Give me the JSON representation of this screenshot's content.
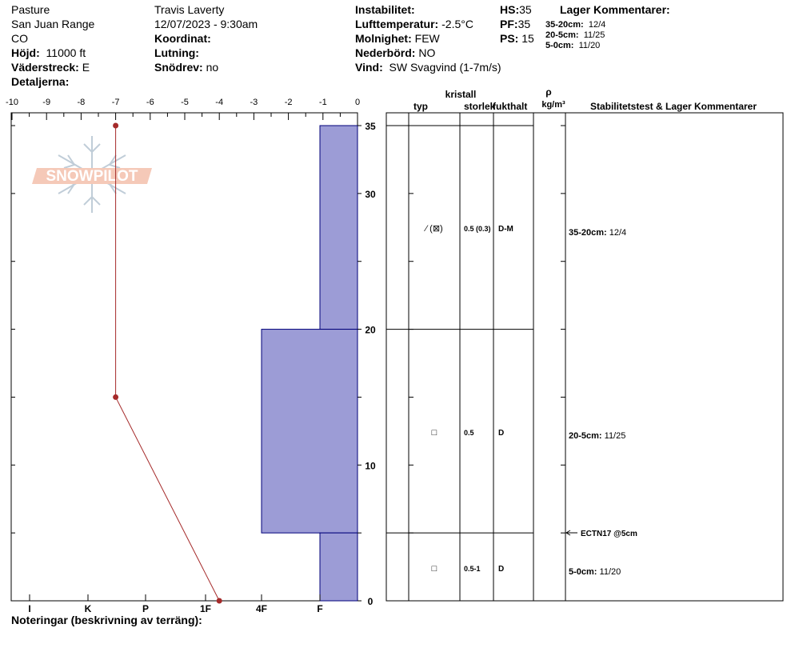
{
  "header": {
    "location": "Pasture",
    "range": "San Juan Range",
    "state": "CO",
    "elevation_label": "Höjd:",
    "elevation_value": "11000 ft",
    "aspect_label": "Väderstreck:",
    "aspect_value": "E",
    "details_label": "Detaljerna:",
    "observer": "Travis Laverty",
    "datetime": "12/07/2023 - 9:30am",
    "coordinate_label": "Koordinat:",
    "slope_label": "Lutning:",
    "drift_label": "Snödrev:",
    "drift_value": "no",
    "instability_label": "Instabilitet:",
    "airtemp_label": "Lufttemperatur:",
    "airtemp_value": "-2.5°C",
    "sky_label": "Molnighet:",
    "sky_value": "FEW",
    "precip_label": "Nederbörd:",
    "precip_value": "NO",
    "wind_label": "Vind:",
    "wind_value": "SW Svagvind (1-7m/s)",
    "hs_label": "HS:",
    "hs_value": "35",
    "pf_label": "PF:",
    "pf_value": "35",
    "ps_label": "PS:",
    "ps_value": "15",
    "layer_comments_title": "Lager Kommentarer:",
    "layer_comments": [
      {
        "range": "35-20cm:",
        "text": "12/4"
      },
      {
        "range": "20-5cm:",
        "text": "11/25"
      },
      {
        "range": "5-0cm:",
        "text": "11/20"
      }
    ]
  },
  "logo": {
    "text": "SNOWPILOT"
  },
  "notes_label": "Noteringar (beskrivning av terräng):",
  "colors": {
    "hardness_fill": "#9c9cd6",
    "temp_line": "#a52a2a",
    "logo": "#f5c9b8",
    "snowflake": "#c0cdd8"
  },
  "table": {
    "crystal_label": "kristall",
    "type_label": "typ",
    "size_label": "storlek",
    "moisture_label": "fukthalt",
    "density_symbol": "ρ",
    "density_unit": "kg/m³",
    "stability_label": "Stabilitetstest & Lager Kommentarer",
    "rows": [
      {
        "symbol": "⁄ (⊠)",
        "size": "0.5 (0.3)",
        "moisture": "D-M",
        "comment_range": "35-20cm:",
        "comment": "12/4"
      },
      {
        "symbol": "□",
        "size": "0.5",
        "moisture": "D",
        "comment_range": "20-5cm:",
        "comment": "11/25"
      },
      {
        "symbol": "□",
        "size": "0.5-1",
        "moisture": "D",
        "comment_range": "5-0cm:",
        "comment": "11/20"
      }
    ],
    "test": "ECTN17 @5cm"
  },
  "chart_data": {
    "type": "snow_profile",
    "depth_axis": {
      "label": "",
      "range": [
        0,
        35
      ],
      "ticks": [
        "0",
        "10",
        "20",
        "30",
        "35"
      ]
    },
    "temperature_axis": {
      "range": [
        -10,
        0
      ],
      "ticks": [
        "-10",
        "-9",
        "-8",
        "-7",
        "-6",
        "-5",
        "-4",
        "-3",
        "-2",
        "-1",
        "0"
      ]
    },
    "hardness_axis": {
      "ticks": [
        "I",
        "K",
        "P",
        "1F",
        "4F",
        "F"
      ]
    },
    "temperature_profile": [
      {
        "depth": 35,
        "temp": -7
      },
      {
        "depth": 15,
        "temp": -7
      },
      {
        "depth": 0,
        "temp": -4
      }
    ],
    "layers": [
      {
        "top": 35,
        "bottom": 20,
        "hardness": "F"
      },
      {
        "top": 20,
        "bottom": 5,
        "hardness": "4F"
      },
      {
        "top": 5,
        "bottom": 0,
        "hardness": "F"
      }
    ]
  }
}
